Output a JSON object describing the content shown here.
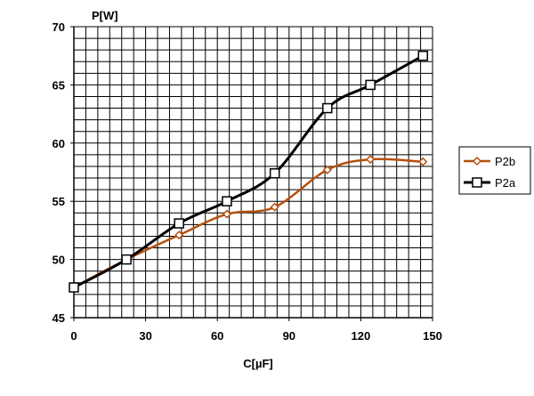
{
  "chart_data": {
    "type": "line",
    "title": "",
    "xlabel": "C[µF]",
    "ylabel": "P[W]",
    "xlim": [
      0,
      150
    ],
    "ylim": [
      45,
      70
    ],
    "xticks": [
      0,
      30,
      60,
      90,
      120,
      150
    ],
    "yticks": [
      45,
      50,
      55,
      60,
      65,
      70
    ],
    "x_minor_step": 5,
    "y_minor_step": 1,
    "grid": true,
    "legend_position": "right",
    "series": [
      {
        "name": "P2b",
        "color": "#b5500f",
        "marker": "diamond",
        "x": [
          0,
          22,
          44,
          64,
          84,
          106,
          124,
          146
        ],
        "y": [
          47.6,
          50.0,
          52.1,
          53.9,
          54.5,
          57.7,
          58.6,
          58.4
        ]
      },
      {
        "name": "P2a",
        "color": "#000000",
        "marker": "square",
        "x": [
          0,
          22,
          44,
          64,
          84,
          106,
          124,
          146
        ],
        "y": [
          47.6,
          50.0,
          53.1,
          55.0,
          57.4,
          63.0,
          65.0,
          67.5
        ]
      }
    ]
  }
}
